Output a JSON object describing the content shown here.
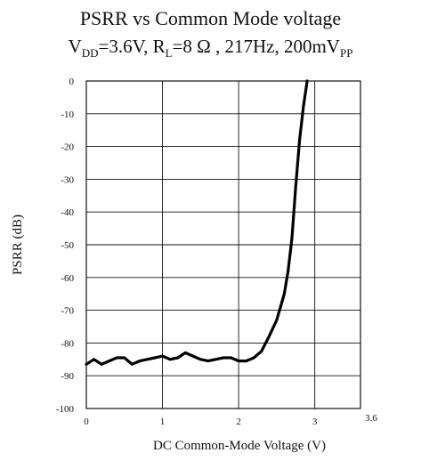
{
  "chart_data": {
    "type": "line",
    "title": "PSRR vs Common Mode voltage",
    "subtitle": {
      "vdd_prefix": "V",
      "vdd_sub": "DD",
      "vdd_value": "=3.6V, R",
      "rl_sub": "L",
      "rest": "=8 Ω , 217Hz, 200mV",
      "pp_sub": "PP"
    },
    "xlabel": "DC Common-Mode Voltage (V)",
    "ylabel": "PSRR (dB)",
    "xlim": [
      0,
      3.6
    ],
    "ylim": [
      -100,
      0
    ],
    "x_ticks": [
      {
        "value": 0,
        "label": "0"
      },
      {
        "value": 1,
        "label": "1"
      },
      {
        "value": 2,
        "label": "2"
      },
      {
        "value": 3,
        "label": "3"
      },
      {
        "value": 3.6,
        "label": "3.6"
      }
    ],
    "y_ticks": [
      {
        "value": 0,
        "label": "0"
      },
      {
        "value": -10,
        "label": "-10"
      },
      {
        "value": -20,
        "label": "-20"
      },
      {
        "value": -30,
        "label": "-30"
      },
      {
        "value": -40,
        "label": "-40"
      },
      {
        "value": -50,
        "label": "-50"
      },
      {
        "value": -60,
        "label": "-60"
      },
      {
        "value": -70,
        "label": "-70"
      },
      {
        "value": -80,
        "label": "-80"
      },
      {
        "value": -90,
        "label": "-90"
      },
      {
        "value": -100,
        "label": "-100"
      }
    ],
    "grid": true,
    "series": [
      {
        "color": "#000000",
        "x": [
          0,
          0.1,
          0.2,
          0.3,
          0.4,
          0.5,
          0.6,
          0.7,
          0.8,
          0.9,
          1.0,
          1.1,
          1.2,
          1.3,
          1.4,
          1.5,
          1.6,
          1.7,
          1.8,
          1.9,
          2.0,
          2.1,
          2.2,
          2.3,
          2.4,
          2.5,
          2.6,
          2.65,
          2.7,
          2.75,
          2.8,
          2.85,
          2.9
        ],
        "y": [
          -86.5,
          -85,
          -86.5,
          -85.5,
          -84.5,
          -84.5,
          -86.5,
          -85.5,
          -85,
          -84.5,
          -84,
          -85,
          -84.5,
          -83,
          -84,
          -85,
          -85.5,
          -85,
          -84.5,
          -84.5,
          -85.5,
          -85.5,
          -84.5,
          -82.5,
          -78,
          -73,
          -65,
          -58,
          -48,
          -32,
          -18,
          -8,
          0
        ]
      }
    ]
  }
}
